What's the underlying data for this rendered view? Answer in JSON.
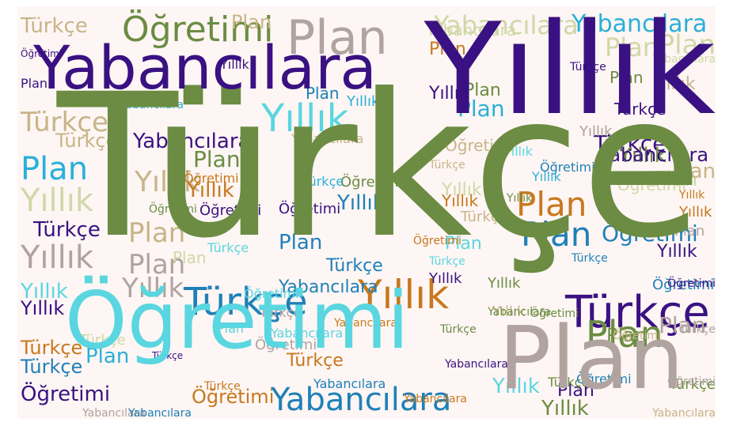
{
  "words": [
    {
      "text": "Türkçe",
      "color": "#6b8c42"
    },
    {
      "text": "Yıllık",
      "color": "#3a1182"
    },
    {
      "text": "Öğretimi",
      "color": "#5ad6e0"
    },
    {
      "text": "Plan",
      "color": "#b0a3a0"
    },
    {
      "text": "Yabancılara",
      "color": "#3a1182"
    },
    {
      "text": "Yıllık",
      "color": "#5ad6e0"
    },
    {
      "text": "Öğretimi",
      "color": "#6b8c42"
    },
    {
      "text": "Plan",
      "color": "#b0a3a0"
    },
    {
      "text": "Türkçe",
      "color": "#3a1182"
    },
    {
      "text": "Yıllık",
      "color": "#c8781e"
    },
    {
      "text": "Türkçe",
      "color": "#2080b8"
    },
    {
      "text": "Yabancılara",
      "color": "#2080b8"
    },
    {
      "text": "Yabancılara",
      "color": "#2ab0d8"
    },
    {
      "text": "Plan",
      "color": "#6b8c42"
    },
    {
      "text": "Plan",
      "color": "#2080b8"
    },
    {
      "text": "Plan",
      "color": "#c8781e"
    },
    {
      "text": "Yabancılara",
      "color": "#3a1182"
    },
    {
      "text": "Türkçe",
      "color": "#c8b488"
    },
    {
      "text": "Türkçe",
      "color": "#c8b488"
    },
    {
      "text": "Plan",
      "color": "#2ab0d8"
    },
    {
      "text": "Yıllık",
      "color": "#d0d8a8"
    },
    {
      "text": "Yıllık",
      "color": "#b0a3a0"
    },
    {
      "text": "Öğretimi",
      "color": "#3a1182"
    },
    {
      "text": "Yabancılara",
      "color": "#d0d8a8"
    },
    {
      "text": "Plan",
      "color": "#d0d8a8"
    },
    {
      "text": "Plan",
      "color": "#c8b488"
    },
    {
      "text": "Öğretimi",
      "color": "#2080b8"
    },
    {
      "text": "Türkçe",
      "color": "#3a1182"
    },
    {
      "text": "Yabancılara",
      "color": "#2080b8"
    },
    {
      "text": "Yıllık",
      "color": "#c8b488"
    },
    {
      "text": "Plan",
      "color": "#c8b488"
    },
    {
      "text": "Plan",
      "color": "#b0a3a0"
    },
    {
      "text": "Yıllık",
      "color": "#b0a3a0"
    },
    {
      "text": "Yıllık",
      "color": "#5ad6e0"
    },
    {
      "text": "Yıllık",
      "color": "#3a1182"
    },
    {
      "text": "Yıllık",
      "color": "#6b8c42"
    },
    {
      "text": "Yıllık",
      "color": "#c8b488"
    },
    {
      "text": "Yıllık",
      "color": "#3a1182"
    },
    {
      "text": "Plan",
      "color": "#6b8c42"
    },
    {
      "text": "Plan",
      "color": "#d0d8a8"
    },
    {
      "text": "Türkçe",
      "color": "#3a1182"
    },
    {
      "text": "Türkçe",
      "color": "#2080b8"
    },
    {
      "text": "Türkçe",
      "color": "#c8781e"
    },
    {
      "text": "Öğretimi",
      "color": "#3a1182"
    },
    {
      "text": "Öğretimi",
      "color": "#3a1182"
    },
    {
      "text": "Plan",
      "color": "#2ab0d8"
    },
    {
      "text": "Plan",
      "color": "#b0a3a0"
    },
    {
      "text": "Plan",
      "color": "#6b8c42"
    },
    {
      "text": "Plan",
      "color": "#d0d8a8"
    },
    {
      "text": "Plan",
      "color": "#c8b488"
    },
    {
      "text": "Yıllık",
      "color": "#2080b8"
    },
    {
      "text": "Yıllık",
      "color": "#3a1182"
    },
    {
      "text": "Yıllık",
      "color": "#c8781e"
    },
    {
      "text": "Yıllık",
      "color": "#6b8c42"
    },
    {
      "text": "Yıllık",
      "color": "#5ad6e0"
    },
    {
      "text": "Yabancılara",
      "color": "#3a1182"
    },
    {
      "text": "Yabancılara",
      "color": "#d0d8a8"
    },
    {
      "text": "Yabancılara",
      "color": "#c8781e"
    },
    {
      "text": "Öğretimi",
      "color": "#c8781e"
    },
    {
      "text": "Öğretimi",
      "color": "#d0d8a8"
    },
    {
      "text": "Öğretimi",
      "color": "#2080b8"
    },
    {
      "text": "Öğretimi",
      "color": "#6b8c42"
    },
    {
      "text": "Türkçe",
      "color": "#c8b488"
    },
    {
      "text": "Türkçe",
      "color": "#2080b8"
    },
    {
      "text": "Türkçe",
      "color": "#2ab0d8"
    },
    {
      "text": "Türkçe",
      "color": "#6b8c42"
    },
    {
      "text": "Türkçe",
      "color": "#c8781e"
    },
    {
      "text": "Plan",
      "color": "#2080b8"
    },
    {
      "text": "Plan",
      "color": "#5ad6e0"
    },
    {
      "text": "Plan",
      "color": "#c8781e"
    },
    {
      "text": "Plan",
      "color": "#2ab0d8"
    },
    {
      "text": "Plan",
      "color": "#6b8c42"
    },
    {
      "text": "Plan",
      "color": "#3a1182"
    },
    {
      "text": "Plan",
      "color": "#d0d8a8"
    },
    {
      "text": "Plan",
      "color": "#b0a3a0"
    },
    {
      "text": "Yıllık",
      "color": "#d0d8a8"
    },
    {
      "text": "Yıllık",
      "color": "#c8781e"
    },
    {
      "text": "Yıllık",
      "color": "#b0a3a0"
    },
    {
      "text": "Yıllık",
      "color": "#2ab0d8"
    },
    {
      "text": "Yıllık",
      "color": "#c8781e"
    },
    {
      "text": "Yıllık",
      "color": "#6b8c42"
    },
    {
      "text": "Yıllık",
      "color": "#3a1182"
    },
    {
      "text": "Yıllık",
      "color": "#c8b488"
    },
    {
      "text": "Öğretimi",
      "color": "#c8b488"
    },
    {
      "text": "Öğretimi",
      "color": "#2080b8"
    },
    {
      "text": "Öğretimi",
      "color": "#6b8c42"
    },
    {
      "text": "Öğretimi",
      "color": "#b0a3a0"
    },
    {
      "text": "Öğretimi",
      "color": "#3a1182"
    },
    {
      "text": "Öğretimi",
      "color": "#c8781e"
    },
    {
      "text": "Öğretimi",
      "color": "#5ad6e0"
    },
    {
      "text": "Türkçe",
      "color": "#6b8c42"
    },
    {
      "text": "Türkçe",
      "color": "#d0d8a8"
    },
    {
      "text": "Türkçe",
      "color": "#3a1182"
    },
    {
      "text": "Türkçe",
      "color": "#5ad6e0"
    },
    {
      "text": "Türkçe",
      "color": "#c8b488"
    },
    {
      "text": "Türkçe",
      "color": "#b0a3a0"
    },
    {
      "text": "Türkçe",
      "color": "#3a1182"
    },
    {
      "text": "Yabancılara",
      "color": "#2ab0d8"
    },
    {
      "text": "Yabancılara",
      "color": "#c8b488"
    },
    {
      "text": "Yabancılara",
      "color": "#2080b8"
    },
    {
      "text": "Yabancılara",
      "color": "#6b8c42"
    },
    {
      "text": "Yabancılara",
      "color": "#d0d8a8"
    },
    {
      "text": "Yabancılara",
      "color": "#3a1182"
    },
    {
      "text": "Yabancılara",
      "color": "#5ad6e0"
    },
    {
      "text": "Yabancılara",
      "color": "#c8781e"
    },
    {
      "text": "Yabancılara",
      "color": "#b0a3a0"
    },
    {
      "text": "Yabancılara",
      "color": "#2080b8"
    },
    {
      "text": "Yabancılara",
      "color": "#c8b488"
    },
    {
      "text": "Plan",
      "color": "#c8b488"
    },
    {
      "text": "Plan",
      "color": "#5ad6e0"
    },
    {
      "text": "Plan",
      "color": "#3a1182"
    },
    {
      "text": "Plan",
      "color": "#2080b8"
    },
    {
      "text": "Plan",
      "color": "#6b8c42"
    },
    {
      "text": "Yıllık",
      "color": "#3a1182"
    },
    {
      "text": "Yıllık",
      "color": "#2ab0d8"
    },
    {
      "text": "Yıllık",
      "color": "#5ad6e0"
    },
    {
      "text": "Yıllık",
      "color": "#6b8c42"
    },
    {
      "text": "Yıllık",
      "color": "#c8781e"
    },
    {
      "text": "Öğretimi",
      "color": "#c8781e"
    },
    {
      "text": "Öğretimi",
      "color": "#3a1182"
    },
    {
      "text": "Öğretimi",
      "color": "#6b8c42"
    },
    {
      "text": "Öğretimi",
      "color": "#c8b488"
    },
    {
      "text": "Öğretimi",
      "color": "#2080b8"
    },
    {
      "text": "Öğretimi",
      "color": "#b0a3a0"
    },
    {
      "text": "Türkçe",
      "color": "#5ad6e0"
    },
    {
      "text": "Türkçe",
      "color": "#2080b8"
    },
    {
      "text": "Türkçe",
      "color": "#3a1182"
    },
    {
      "text": "Türkçe",
      "color": "#c8b488"
    },
    {
      "text": "Türkçe",
      "color": "#6b8c42"
    },
    {
      "text": "Türkçe",
      "color": "#c8781e"
    },
    {
      "text": "Türkçe",
      "color": "#b0a3a0"
    }
  ]
}
